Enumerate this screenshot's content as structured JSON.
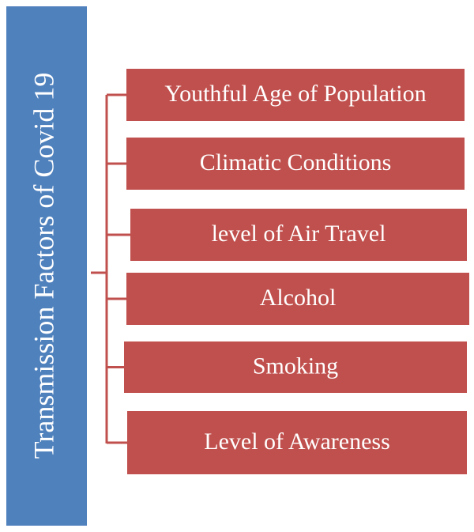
{
  "title": "Transmission Factors of Covid 19",
  "nodes": [
    {
      "label": "Youthful Age of Population"
    },
    {
      "label": "Climatic Conditions"
    },
    {
      "label": "level of Air Travel"
    },
    {
      "label": "Alcohol"
    },
    {
      "label": "Smoking"
    },
    {
      "label": "Level of Awareness"
    }
  ]
}
